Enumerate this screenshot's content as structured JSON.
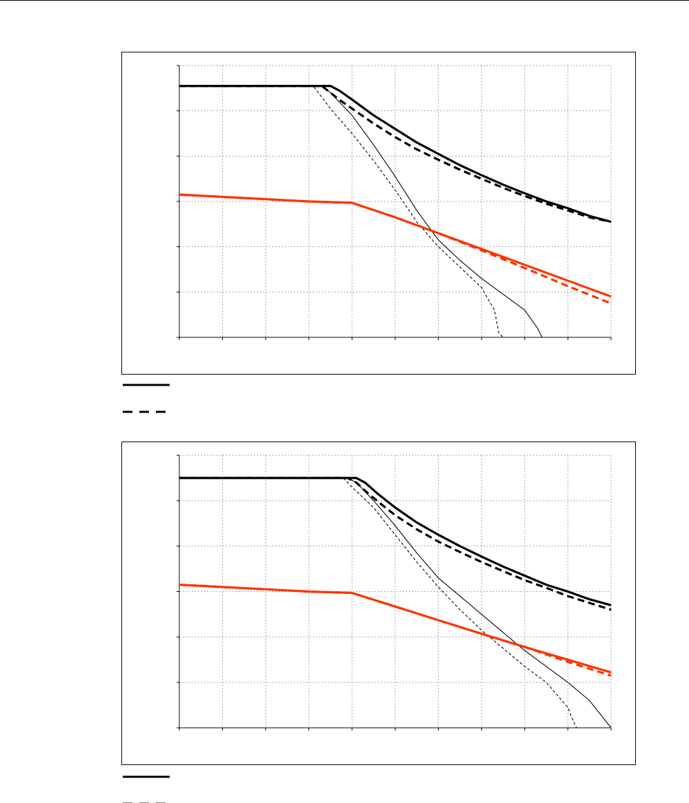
{
  "chart_data": [
    {
      "type": "line",
      "xlim": [
        0,
        10
      ],
      "ylim": [
        0,
        6
      ],
      "grid": true,
      "series": [
        {
          "color": "#000000",
          "style": "solid",
          "weight": "heavy",
          "x": [
            0,
            3.3,
            3.5,
            3.7,
            4,
            4.5,
            5,
            5.5,
            6,
            6.5,
            7,
            7.5,
            8,
            8.5,
            9,
            9.5,
            10
          ],
          "y": [
            5.55,
            5.55,
            5.55,
            5.45,
            5.25,
            4.9,
            4.6,
            4.3,
            4.05,
            3.8,
            3.58,
            3.37,
            3.18,
            3.0,
            2.85,
            2.68,
            2.55
          ]
        },
        {
          "color": "#000000",
          "style": "dashed",
          "weight": "heavy",
          "x": [
            0,
            3.3,
            3.5,
            3.7,
            4,
            4.5,
            5,
            5.5,
            6,
            6.5,
            7,
            7.5,
            8,
            8.5,
            9,
            9.5,
            10
          ],
          "y": [
            5.55,
            5.55,
            5.4,
            5.25,
            5.05,
            4.72,
            4.42,
            4.15,
            3.92,
            3.7,
            3.5,
            3.3,
            3.12,
            2.95,
            2.8,
            2.65,
            2.55
          ]
        },
        {
          "color": "#000000",
          "style": "solid",
          "weight": "thin",
          "x": [
            0,
            3.3,
            3.5,
            4,
            4.5,
            5,
            5.5,
            6,
            6.5,
            7,
            7.5,
            8,
            8.3,
            8.4
          ],
          "y": [
            5.55,
            5.55,
            5.4,
            4.9,
            4.25,
            3.55,
            2.8,
            2.15,
            1.7,
            1.3,
            0.95,
            0.6,
            0.2,
            0
          ]
        },
        {
          "color": "#000000",
          "style": "dashed",
          "weight": "thin",
          "x": [
            0,
            3.1,
            3.3,
            3.5,
            4,
            4.5,
            5,
            5.5,
            6,
            6.5,
            7,
            7.3,
            7.4,
            7.5
          ],
          "y": [
            5.55,
            5.55,
            5.3,
            5.05,
            4.5,
            3.9,
            3.25,
            2.55,
            2.0,
            1.55,
            1.1,
            0.6,
            0.1,
            0
          ]
        },
        {
          "color": "#ff3300",
          "style": "solid",
          "weight": "heavy",
          "x": [
            0,
            1,
            2,
            3,
            4,
            5,
            6,
            7,
            8,
            9,
            10
          ],
          "y": [
            3.15,
            3.1,
            3.05,
            3.0,
            2.97,
            2.65,
            2.3,
            1.95,
            1.6,
            1.25,
            0.9
          ]
        },
        {
          "color": "#ff3300",
          "style": "dashed",
          "weight": "heavy",
          "x": [
            0,
            1,
            2,
            3,
            4,
            5,
            6,
            7,
            8,
            9,
            10
          ],
          "y": [
            3.15,
            3.1,
            3.05,
            3.0,
            2.97,
            2.65,
            2.3,
            1.92,
            1.53,
            1.13,
            0.75
          ]
        }
      ]
    },
    {
      "type": "line",
      "xlim": [
        0,
        10
      ],
      "ylim": [
        0,
        6
      ],
      "grid": true,
      "series": [
        {
          "color": "#000000",
          "style": "solid",
          "weight": "heavy",
          "x": [
            0,
            3.9,
            4.1,
            4.3,
            4.6,
            5,
            5.5,
            6,
            6.5,
            7,
            7.5,
            8,
            8.5,
            9,
            9.5,
            10
          ],
          "y": [
            5.5,
            5.5,
            5.5,
            5.4,
            5.15,
            4.85,
            4.52,
            4.25,
            4.0,
            3.77,
            3.55,
            3.35,
            3.15,
            3.0,
            2.83,
            2.7
          ]
        },
        {
          "color": "#000000",
          "style": "dashed",
          "weight": "heavy",
          "x": [
            0,
            3.9,
            4.1,
            4.3,
            4.6,
            5,
            5.5,
            6,
            6.5,
            7,
            7.5,
            8,
            8.5,
            9,
            9.5,
            10
          ],
          "y": [
            5.5,
            5.5,
            5.4,
            5.22,
            4.98,
            4.68,
            4.37,
            4.1,
            3.87,
            3.65,
            3.45,
            3.25,
            3.08,
            2.9,
            2.75,
            2.6
          ]
        },
        {
          "color": "#000000",
          "style": "solid",
          "weight": "thin",
          "x": [
            0,
            3.9,
            4.1,
            4.5,
            5,
            5.5,
            6,
            6.5,
            7,
            7.5,
            8,
            8.5,
            9,
            9.5,
            10
          ],
          "y": [
            5.5,
            5.5,
            5.4,
            5.0,
            4.45,
            3.85,
            3.3,
            2.9,
            2.5,
            2.1,
            1.7,
            1.35,
            1.0,
            0.6,
            0
          ]
        },
        {
          "color": "#000000",
          "style": "dashed",
          "weight": "thin",
          "x": [
            0,
            3.8,
            4.0,
            4.5,
            5,
            5.5,
            6,
            6.5,
            7,
            7.5,
            8,
            8.5,
            9,
            9.1,
            9.2
          ],
          "y": [
            5.5,
            5.5,
            5.3,
            4.85,
            4.25,
            3.65,
            3.1,
            2.6,
            2.15,
            1.75,
            1.35,
            1.0,
            0.45,
            0.2,
            0
          ]
        },
        {
          "color": "#ff3300",
          "style": "solid",
          "weight": "heavy",
          "x": [
            0,
            1,
            2,
            3,
            4,
            5,
            6,
            7,
            8,
            9,
            10
          ],
          "y": [
            3.15,
            3.1,
            3.05,
            3.0,
            2.97,
            2.67,
            2.37,
            2.07,
            1.78,
            1.5,
            1.22
          ]
        },
        {
          "color": "#ff3300",
          "style": "dashed",
          "weight": "heavy",
          "x": [
            0,
            1,
            2,
            3,
            4,
            5,
            6,
            7,
            8,
            9,
            10
          ],
          "y": [
            3.15,
            3.1,
            3.05,
            3.0,
            2.97,
            2.67,
            2.37,
            2.07,
            1.78,
            1.45,
            1.15
          ]
        }
      ]
    }
  ],
  "legend_rows": [
    {
      "style": "solid",
      "color": "#000000"
    },
    {
      "style": "dashed",
      "color": "#000000"
    }
  ]
}
